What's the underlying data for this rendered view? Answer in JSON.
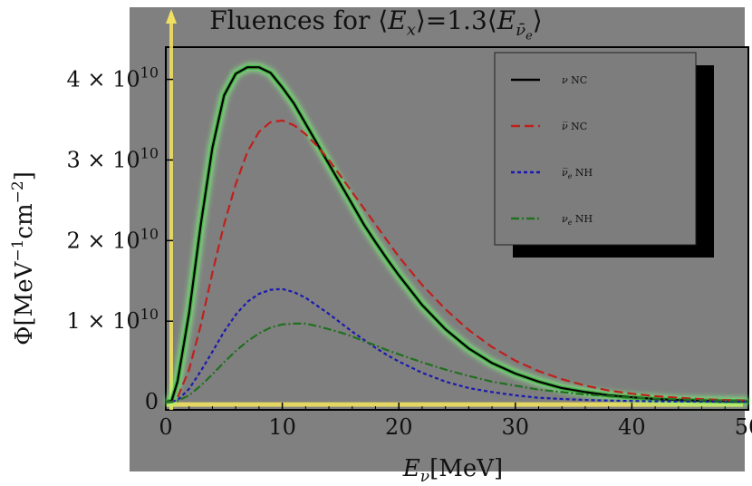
{
  "chart_data": {
    "type": "line",
    "title": "Fluences for ⟨E_x⟩=1.3⟨E_ν̄e⟩",
    "title_parts": {
      "prefix": "Fluences for ⟨",
      "e1": "E",
      "e1_sub": "x",
      "mid": "⟩=1.3⟨",
      "e2": "E",
      "e2_sub": "ν̄",
      "e2_subsub": "e",
      "suffix": "⟩"
    },
    "xlabel": "E_ν[MeV]",
    "xlabel_parts": {
      "sym": "E",
      "sub": "ν",
      "unit": "[MeV]"
    },
    "ylabel": "Φ[MeV⁻¹cm⁻²]",
    "ylabel_parts": {
      "pre": "Φ[MeV",
      "sup1": "−1",
      "mid": "cm",
      "sup2": "−2",
      "post": "]"
    },
    "xlim": [
      0,
      50
    ],
    "ylim": [
      -1000000000.0,
      44000000000.0
    ],
    "xticks": [
      0,
      10,
      20,
      30,
      40,
      50
    ],
    "yticks": [
      {
        "value": 0,
        "label": "0"
      },
      {
        "value": 10000000000.0,
        "label": "1 × 10",
        "exp": "10"
      },
      {
        "value": 20000000000.0,
        "label": "2 × 10",
        "exp": "10"
      },
      {
        "value": 30000000000.0,
        "label": "3 × 10",
        "exp": "10"
      },
      {
        "value": 40000000000.0,
        "label": "4 × 10",
        "exp": "10"
      }
    ],
    "x": [
      0.5,
      1,
      2,
      3,
      4,
      5,
      6,
      7,
      8,
      9,
      10,
      11,
      12,
      13,
      14,
      15,
      16,
      17,
      18,
      19,
      20,
      22,
      24,
      26,
      28,
      30,
      32,
      34,
      36,
      38,
      40,
      42,
      44,
      46,
      48,
      50
    ],
    "series": [
      {
        "name": "ν NC",
        "color": "#000000",
        "dash": "solid",
        "glow": "#7cff7c",
        "values": [
          100000000.0,
          2500000000.0,
          11000000000.0,
          22000000000.0,
          31500000000.0,
          38000000000.0,
          40700000000.0,
          41500000000.0,
          41500000000.0,
          40800000000.0,
          39000000000.0,
          37000000000.0,
          34500000000.0,
          32000000000.0,
          29500000000.0,
          27000000000.0,
          24500000000.0,
          22000000000.0,
          19800000000.0,
          17700000000.0,
          15700000000.0,
          12000000000.0,
          9000000000.0,
          6600000000.0,
          4800000000.0,
          3500000000.0,
          2500000000.0,
          1700000000.0,
          1200000000.0,
          800000000.0,
          550000000.0,
          350000000.0,
          220000000.0,
          140000000.0,
          80000000.0,
          50000000.0
        ]
      },
      {
        "name": "ν̄ NC",
        "color": "#c0201c",
        "dash": "10,5",
        "values": [
          0.0,
          500000000.0,
          4000000000.0,
          9500000000.0,
          16000000000.0,
          22000000000.0,
          27000000000.0,
          31000000000.0,
          33500000000.0,
          34700000000.0,
          34900000000.0,
          34300000000.0,
          33200000000.0,
          31700000000.0,
          30000000000.0,
          28000000000.0,
          26000000000.0,
          24000000000.0,
          22000000000.0,
          20000000000.0,
          18000000000.0,
          14500000000.0,
          11500000000.0,
          8900000000.0,
          6800000000.0,
          5100000000.0,
          3800000000.0,
          2800000000.0,
          2000000000.0,
          1400000000.0,
          1000000000.0,
          700000000.0,
          500000000.0,
          330000000.0,
          220000000.0,
          150000000.0
        ]
      },
      {
        "name": "ν̄e NH",
        "color": "#1a1ab0",
        "dash": "4,3",
        "values": [
          0.0,
          200000000.0,
          1600000000.0,
          3800000000.0,
          6200000000.0,
          8700000000.0,
          10800000000.0,
          12400000000.0,
          13400000000.0,
          13900000000.0,
          14000000000.0,
          13600000000.0,
          12900000000.0,
          11900000000.0,
          10900000000.0,
          9800000000.0,
          8700000000.0,
          7700000000.0,
          6700000000.0,
          5800000000.0,
          5000000000.0,
          3600000000.0,
          2500000000.0,
          1700000000.0,
          1200000000.0,
          800000000.0,
          500000000.0,
          350000000.0,
          230000000.0,
          150000000.0,
          100000000.0,
          60000000.0,
          40000000.0,
          20000000.0,
          12000000.0,
          7000000.0
        ]
      },
      {
        "name": "νe NH",
        "color": "#207020",
        "dash": "9,3,2,3",
        "values": [
          0.0,
          100000000.0,
          800000000.0,
          2000000000.0,
          3400000000.0,
          4900000000.0,
          6300000000.0,
          7500000000.0,
          8500000000.0,
          9200000000.0,
          9600000000.0,
          9700000000.0,
          9700000000.0,
          9400000000.0,
          9000000000.0,
          8600000000.0,
          8100000000.0,
          7500000000.0,
          7000000000.0,
          6400000000.0,
          5900000000.0,
          4900000000.0,
          4000000000.0,
          3200000000.0,
          2500000000.0,
          2000000000.0,
          1500000000.0,
          1200000000.0,
          900000000.0,
          700000000.0,
          500000000.0,
          400000000.0,
          300000000.0,
          200000000.0,
          150000000.0,
          100000000.0
        ]
      }
    ],
    "legend": {
      "placement": "top-right",
      "entries": [
        {
          "sym": "ν",
          "bar": false,
          "sub": "",
          "tail": " NC"
        },
        {
          "sym": "ν",
          "bar": true,
          "sub": "",
          "tail": " NC"
        },
        {
          "sym": "ν",
          "bar": true,
          "sub": "e",
          "tail": " NH"
        },
        {
          "sym": "ν",
          "bar": false,
          "sub": "e",
          "tail": " NH"
        }
      ]
    },
    "colors": {
      "panel": "#808080",
      "plot_bg": "#7f7f7f",
      "axis_highlight": "#f0e060",
      "frame": "#000000"
    },
    "grid": false
  }
}
